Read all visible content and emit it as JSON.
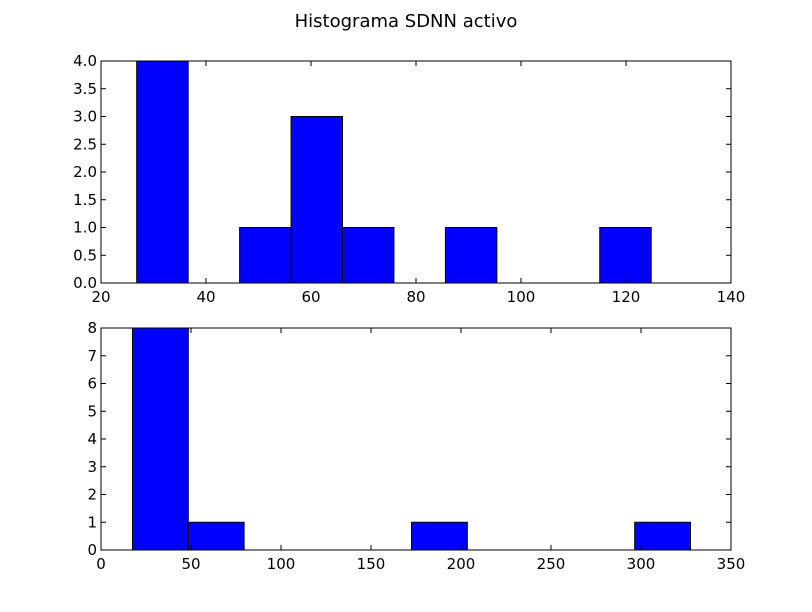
{
  "figure": {
    "title": "Histograma SDNN activo"
  },
  "chart_data": [
    {
      "type": "bar",
      "subtype": "histogram",
      "title": "",
      "xlabel": "",
      "ylabel": "",
      "xlim": [
        20,
        140
      ],
      "ylim": [
        0,
        4
      ],
      "xticks": [
        20,
        40,
        60,
        80,
        100,
        120,
        140
      ],
      "yticks": [
        0.0,
        0.5,
        1.0,
        1.5,
        2.0,
        2.5,
        3.0,
        3.5,
        4.0
      ],
      "xtick_labels": [
        "20",
        "40",
        "60",
        "80",
        "100",
        "120",
        "140"
      ],
      "ytick_labels": [
        "0.0",
        "0.5",
        "1.0",
        "1.5",
        "2.0",
        "2.5",
        "3.0",
        "3.5",
        "4.0"
      ],
      "bins": [
        {
          "x0": 26.8,
          "x1": 36.6,
          "count": 4
        },
        {
          "x0": 36.6,
          "x1": 46.4,
          "count": 0
        },
        {
          "x0": 46.4,
          "x1": 56.2,
          "count": 1
        },
        {
          "x0": 56.2,
          "x1": 66.0,
          "count": 3
        },
        {
          "x0": 66.0,
          "x1": 75.8,
          "count": 1
        },
        {
          "x0": 75.8,
          "x1": 85.6,
          "count": 0
        },
        {
          "x0": 85.6,
          "x1": 95.4,
          "count": 1
        },
        {
          "x0": 95.4,
          "x1": 105.2,
          "count": 0
        },
        {
          "x0": 105.2,
          "x1": 115.0,
          "count": 0
        },
        {
          "x0": 115.0,
          "x1": 124.8,
          "count": 1
        }
      ],
      "bar_color": "#0000ff",
      "grid": false
    },
    {
      "type": "bar",
      "subtype": "histogram",
      "title": "",
      "xlabel": "",
      "ylabel": "",
      "xlim": [
        0,
        350
      ],
      "ylim": [
        0,
        8
      ],
      "xticks": [
        0,
        50,
        100,
        150,
        200,
        250,
        300,
        350
      ],
      "yticks": [
        0,
        1,
        2,
        3,
        4,
        5,
        6,
        7,
        8
      ],
      "xtick_labels": [
        "0",
        "50",
        "100",
        "150",
        "200",
        "250",
        "300",
        "350"
      ],
      "ytick_labels": [
        "0",
        "1",
        "2",
        "3",
        "4",
        "5",
        "6",
        "7",
        "8"
      ],
      "bins": [
        {
          "x0": 17.5,
          "x1": 48.5,
          "count": 8
        },
        {
          "x0": 48.5,
          "x1": 79.5,
          "count": 1
        },
        {
          "x0": 79.5,
          "x1": 110.5,
          "count": 0
        },
        {
          "x0": 110.5,
          "x1": 141.5,
          "count": 0
        },
        {
          "x0": 141.5,
          "x1": 172.5,
          "count": 0
        },
        {
          "x0": 172.5,
          "x1": 203.5,
          "count": 1
        },
        {
          "x0": 203.5,
          "x1": 234.5,
          "count": 0
        },
        {
          "x0": 234.5,
          "x1": 265.5,
          "count": 0
        },
        {
          "x0": 265.5,
          "x1": 296.5,
          "count": 0
        },
        {
          "x0": 296.5,
          "x1": 327.5,
          "count": 1
        }
      ],
      "bar_color": "#0000ff",
      "grid": false
    }
  ]
}
